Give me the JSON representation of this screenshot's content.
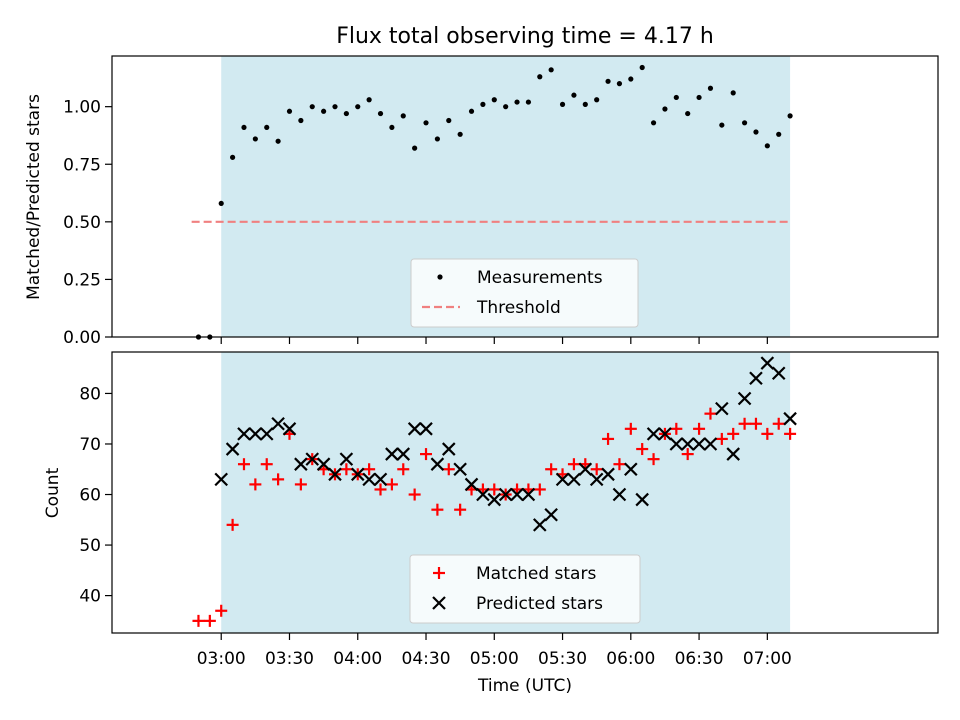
{
  "figure": {
    "title": "Flux total observing time = 4.17 h",
    "xlabel": "Time (UTC)"
  },
  "colors": {
    "shade": "#add8e6",
    "measurement": "#000000",
    "threshold": "#f08080",
    "matched": "#ff0000",
    "predicted": "#000000"
  },
  "chart_data": [
    {
      "type": "scatter",
      "ylabel": "Matched/Predicted stars",
      "xlim_minutes_after_0300": [
        -48,
        315
      ],
      "ylim": [
        0,
        1.22
      ],
      "yticks": [
        "0.00",
        "0.25",
        "0.50",
        "0.75",
        "1.00"
      ],
      "ytick_values": [
        0,
        0.25,
        0.5,
        0.75,
        1.0
      ],
      "grid": false,
      "legend_position": "lower-center",
      "shaded_interval": {
        "start": "03:00",
        "end": "07:10"
      },
      "threshold": {
        "y": 0.5,
        "from": "02:47",
        "to": "07:10"
      },
      "legend": [
        "Measurements",
        "Threshold"
      ],
      "series": [
        {
          "name": "Measurements",
          "x": [
            "02:50",
            "02:55",
            "03:00",
            "03:05",
            "03:10",
            "03:15",
            "03:20",
            "03:25",
            "03:30",
            "03:35",
            "03:40",
            "03:45",
            "03:50",
            "03:55",
            "04:00",
            "04:05",
            "04:10",
            "04:15",
            "04:20",
            "04:25",
            "04:30",
            "04:35",
            "04:40",
            "04:45",
            "04:50",
            "04:55",
            "05:00",
            "05:05",
            "05:10",
            "05:15",
            "05:20",
            "05:25",
            "05:30",
            "05:35",
            "05:40",
            "05:45",
            "05:50",
            "05:55",
            "06:00",
            "06:05",
            "06:10",
            "06:15",
            "06:20",
            "06:25",
            "06:30",
            "06:35",
            "06:40",
            "06:45",
            "06:50",
            "06:55",
            "07:00",
            "07:05",
            "07:10"
          ],
          "y": [
            0.0,
            0.0,
            0.58,
            0.78,
            0.91,
            0.86,
            0.91,
            0.85,
            0.98,
            0.94,
            1.0,
            0.98,
            1.0,
            0.97,
            1.0,
            1.03,
            0.97,
            0.91,
            0.96,
            0.82,
            0.93,
            0.86,
            0.94,
            0.88,
            0.98,
            1.01,
            1.03,
            1.0,
            1.02,
            1.02,
            1.13,
            1.16,
            1.01,
            1.05,
            1.01,
            1.03,
            1.11,
            1.1,
            1.12,
            1.17,
            0.93,
            0.99,
            1.04,
            0.97,
            1.04,
            1.08,
            0.92,
            1.06,
            0.93,
            0.89,
            0.83,
            0.88,
            0.96
          ]
        }
      ]
    },
    {
      "type": "scatter",
      "ylabel": "Count",
      "xlim_minutes_after_0300": [
        -48,
        315
      ],
      "ylim": [
        32.6,
        88.2
      ],
      "yticks": [
        "40",
        "50",
        "60",
        "70",
        "80"
      ],
      "ytick_values": [
        40,
        50,
        60,
        70,
        80
      ],
      "xticks": [
        "03:00",
        "03:30",
        "04:00",
        "04:30",
        "05:00",
        "05:30",
        "06:00",
        "06:30",
        "07:00"
      ],
      "xtick_minutes_after_0300": [
        0,
        30,
        60,
        90,
        120,
        150,
        180,
        210,
        240
      ],
      "grid": false,
      "legend_position": "lower-center",
      "shaded_interval": {
        "start": "03:00",
        "end": "07:10"
      },
      "legend": [
        "Matched stars",
        "Predicted stars"
      ],
      "series": [
        {
          "name": "Matched stars",
          "marker": "+",
          "x": [
            "02:50",
            "02:55",
            "03:00",
            "03:05",
            "03:10",
            "03:15",
            "03:20",
            "03:25",
            "03:30",
            "03:35",
            "03:40",
            "03:45",
            "03:50",
            "03:55",
            "04:00",
            "04:05",
            "04:10",
            "04:15",
            "04:20",
            "04:25",
            "04:30",
            "04:35",
            "04:40",
            "04:45",
            "04:50",
            "04:55",
            "05:00",
            "05:05",
            "05:10",
            "05:15",
            "05:20",
            "05:25",
            "05:30",
            "05:35",
            "05:40",
            "05:45",
            "05:50",
            "05:55",
            "06:00",
            "06:05",
            "06:10",
            "06:15",
            "06:20",
            "06:25",
            "06:30",
            "06:35",
            "06:40",
            "06:45",
            "06:50",
            "06:55",
            "07:00",
            "07:05",
            "07:10"
          ],
          "y": [
            35,
            35,
            37,
            54,
            66,
            62,
            66,
            63,
            72,
            62,
            67,
            65,
            64,
            65,
            64,
            65,
            61,
            62,
            65,
            60,
            68,
            57,
            65,
            57,
            61,
            61,
            61,
            60,
            61,
            61,
            61,
            65,
            64,
            66,
            66,
            65,
            71,
            66,
            73,
            69,
            67,
            72,
            73,
            68,
            73,
            76,
            71,
            72,
            74,
            74,
            72,
            74,
            72
          ]
        },
        {
          "name": "Predicted stars",
          "marker": "x",
          "x": [
            "03:00",
            "03:05",
            "03:10",
            "03:15",
            "03:20",
            "03:25",
            "03:30",
            "03:35",
            "03:40",
            "03:45",
            "03:50",
            "03:55",
            "04:00",
            "04:05",
            "04:10",
            "04:15",
            "04:20",
            "04:25",
            "04:30",
            "04:35",
            "04:40",
            "04:45",
            "04:50",
            "04:55",
            "05:00",
            "05:05",
            "05:10",
            "05:15",
            "05:20",
            "05:25",
            "05:30",
            "05:35",
            "05:40",
            "05:45",
            "05:50",
            "05:55",
            "06:00",
            "06:05",
            "06:10",
            "06:15",
            "06:20",
            "06:25",
            "06:30",
            "06:35",
            "06:40",
            "06:45",
            "06:50",
            "06:55",
            "07:00",
            "07:05",
            "07:10"
          ],
          "y": [
            63,
            69,
            72,
            72,
            72,
            74,
            73,
            66,
            67,
            66,
            64,
            67,
            64,
            63,
            63,
            68,
            68,
            73,
            73,
            66,
            69,
            65,
            62,
            60,
            59,
            60,
            60,
            60,
            54,
            56,
            63,
            63,
            65,
            63,
            64,
            60,
            65,
            59,
            72,
            72,
            70,
            70,
            70,
            70,
            77,
            68,
            79,
            83,
            86,
            84,
            75
          ]
        }
      ]
    }
  ]
}
